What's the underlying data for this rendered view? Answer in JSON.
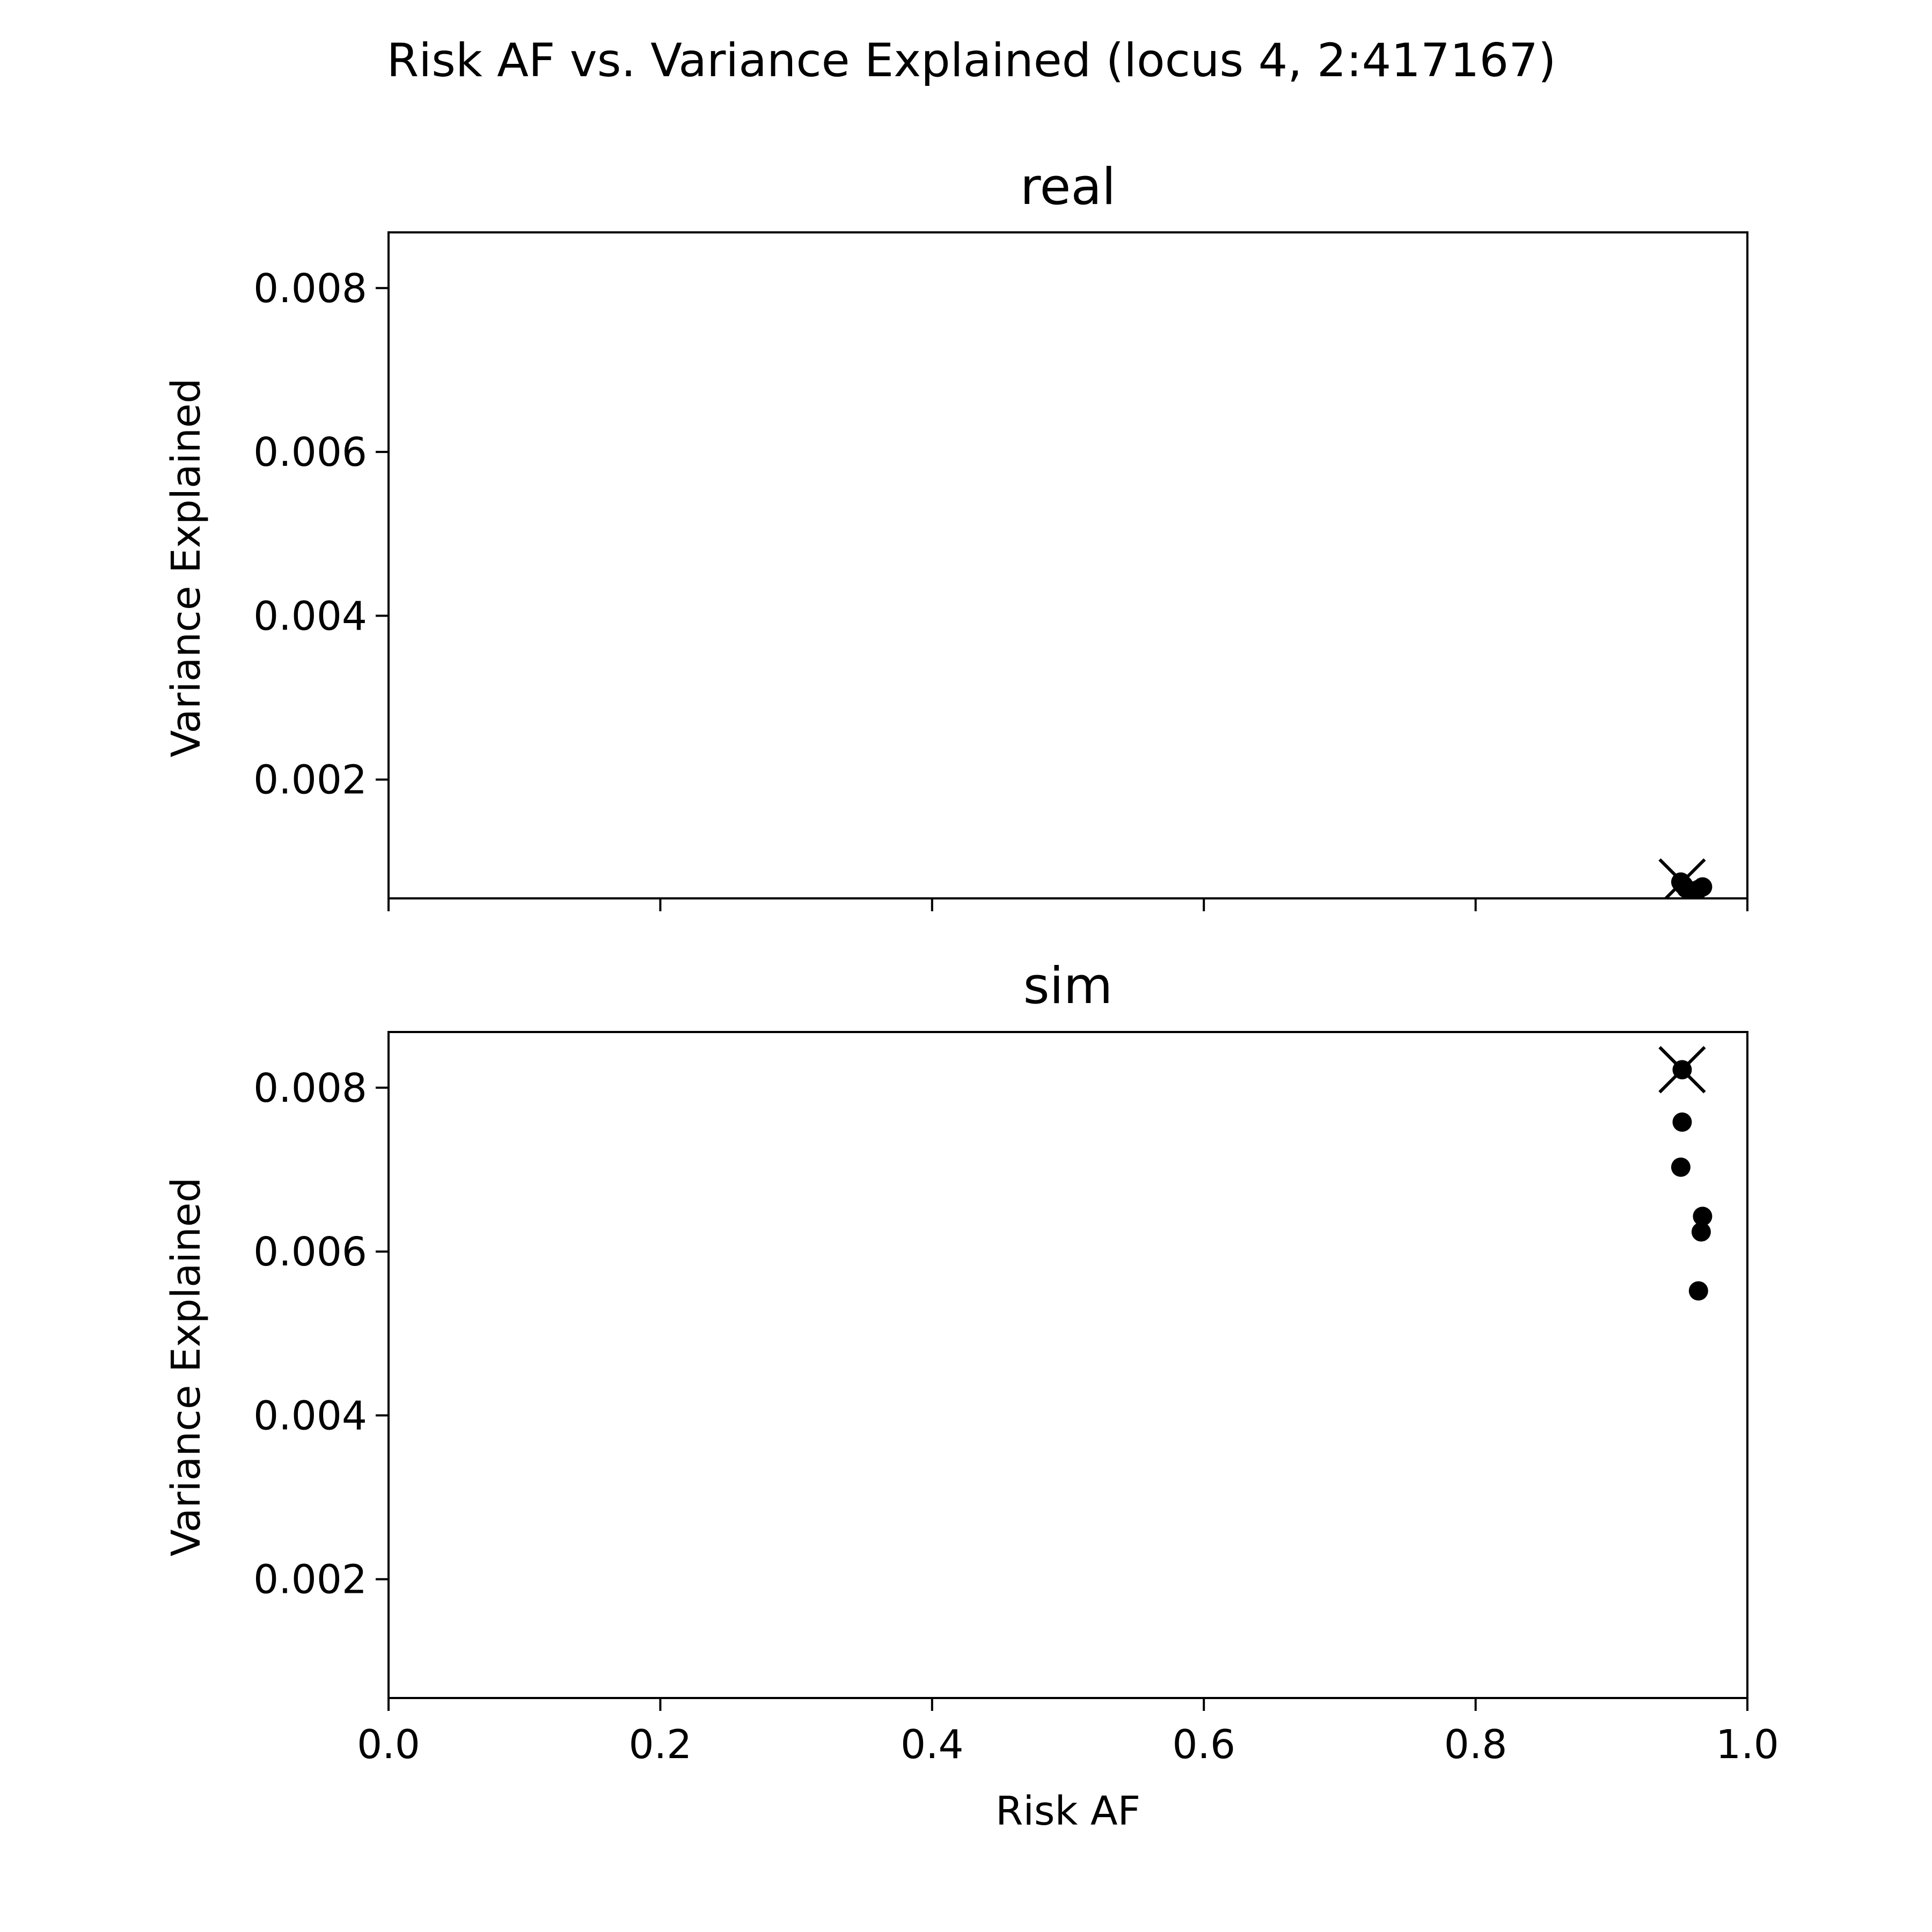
{
  "figure": {
    "title": "Risk AF vs. Variance Explained (locus 4, 2:417167)"
  },
  "chart_data": [
    {
      "type": "scatter",
      "title": "real",
      "xlabel": "",
      "ylabel": "Variance Explained",
      "xlim": [
        0.0,
        1.0
      ],
      "ylim": [
        0.00055,
        0.00868
      ],
      "xticks": [
        0.0,
        0.2,
        0.4,
        0.6,
        0.8,
        1.0
      ],
      "xtick_labels": [
        "",
        "",
        "",
        "",
        "",
        ""
      ],
      "yticks": [
        0.002,
        0.004,
        0.006,
        0.008
      ],
      "ytick_labels": [
        "0.002",
        "0.004",
        "0.006",
        "0.008"
      ],
      "grid": false,
      "points": [
        {
          "x": 0.951,
          "y": 0.00075
        },
        {
          "x": 0.953,
          "y": 0.00071
        },
        {
          "x": 0.955,
          "y": 0.00067
        },
        {
          "x": 0.96,
          "y": 0.00063
        },
        {
          "x": 0.964,
          "y": 0.00066
        },
        {
          "x": 0.967,
          "y": 0.00069
        }
      ],
      "marker_x": {
        "x": 0.952,
        "y": 0.00075
      },
      "color": "#000000"
    },
    {
      "type": "scatter",
      "title": "sim",
      "xlabel": "Risk AF",
      "ylabel": "Variance Explained",
      "xlim": [
        0.0,
        1.0
      ],
      "ylim": [
        0.00055,
        0.00868
      ],
      "xticks": [
        0.0,
        0.2,
        0.4,
        0.6,
        0.8,
        1.0
      ],
      "xtick_labels": [
        "0.0",
        "0.2",
        "0.4",
        "0.6",
        "0.8",
        "1.0"
      ],
      "yticks": [
        0.002,
        0.004,
        0.006,
        0.008
      ],
      "ytick_labels": [
        "0.002",
        "0.004",
        "0.006",
        "0.008"
      ],
      "grid": false,
      "points": [
        {
          "x": 0.952,
          "y": 0.00822
        },
        {
          "x": 0.952,
          "y": 0.00758
        },
        {
          "x": 0.951,
          "y": 0.00703
        },
        {
          "x": 0.967,
          "y": 0.00643
        },
        {
          "x": 0.966,
          "y": 0.00624
        },
        {
          "x": 0.964,
          "y": 0.00552
        }
      ],
      "marker_x": {
        "x": 0.952,
        "y": 0.00822
      },
      "color": "#000000"
    }
  ]
}
